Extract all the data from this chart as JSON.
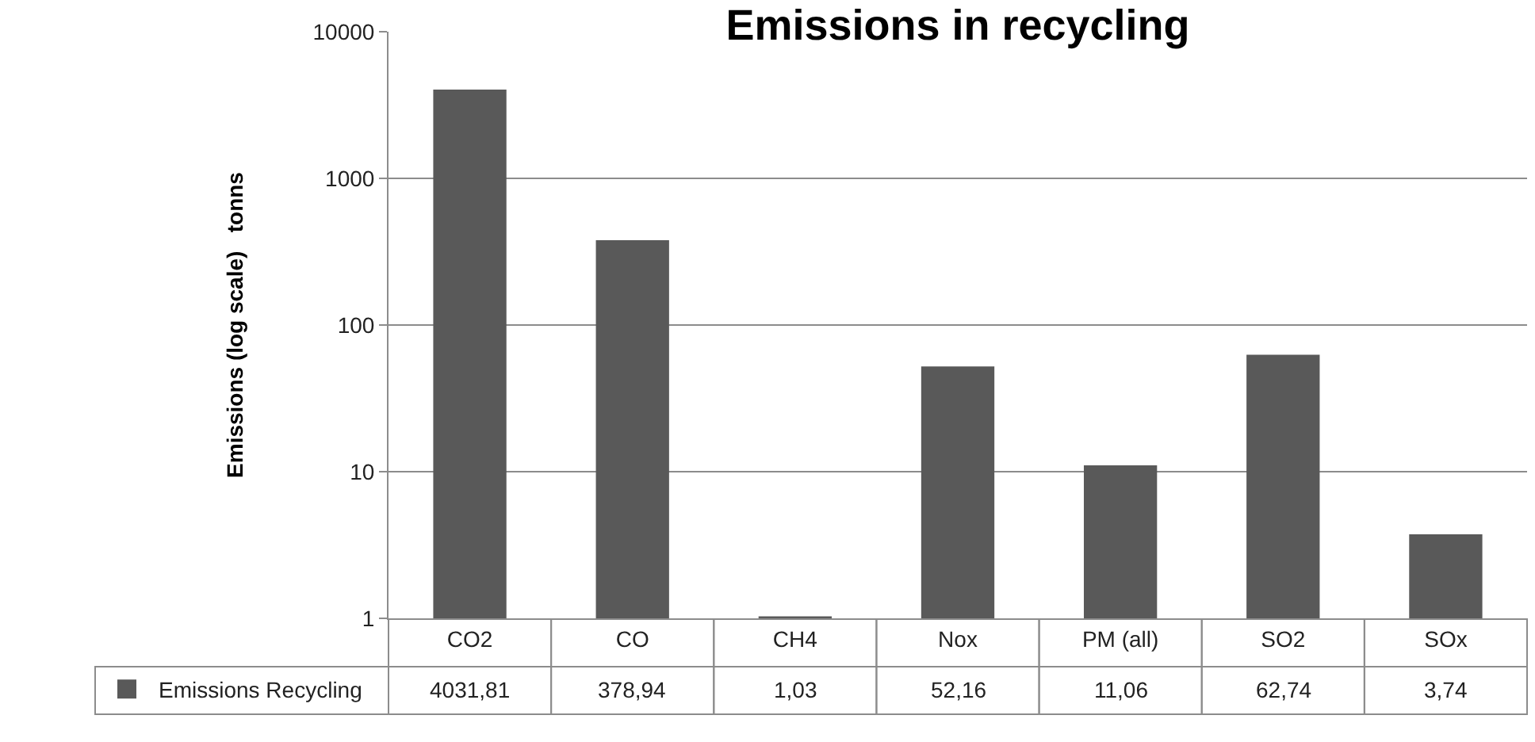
{
  "chart_data": {
    "type": "bar",
    "title": "Emissions in recycling",
    "ylabel": "Emissions (log scale)   tonns",
    "categories": [
      "CO2",
      "CO",
      "CH4",
      "Nox",
      "PM (all)",
      "SO2",
      "SOx"
    ],
    "series": [
      {
        "name": "Emissions Recycling",
        "color": "#595959",
        "values": [
          4031.81,
          378.94,
          1.03,
          52.16,
          11.06,
          62.74,
          3.74
        ],
        "value_labels": [
          "4031,81",
          "378,94",
          "1,03",
          "52,16",
          "11,06",
          "62,74",
          "3,74"
        ]
      }
    ],
    "log": true,
    "ylim": [
      1,
      10000
    ],
    "yticks": [
      1,
      10,
      100,
      1000,
      10000
    ],
    "grid": "y",
    "legend": "bottom left"
  }
}
